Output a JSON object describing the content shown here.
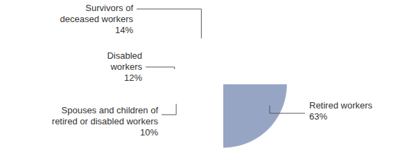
{
  "chart_data": {
    "type": "pie",
    "categories": [
      "Retired workers",
      "Spouses and children of retired or disabled workers",
      "Disabled workers",
      "Survivors of deceased workers"
    ],
    "values": [
      63,
      10,
      12,
      14
    ],
    "value_labels": [
      "63%",
      "10%",
      "12%",
      "14%"
    ],
    "colors": [
      "#97a5c5",
      "#f5c3b8",
      "#0e2b5c",
      "#e8414b"
    ],
    "data_labels": true
  }
}
